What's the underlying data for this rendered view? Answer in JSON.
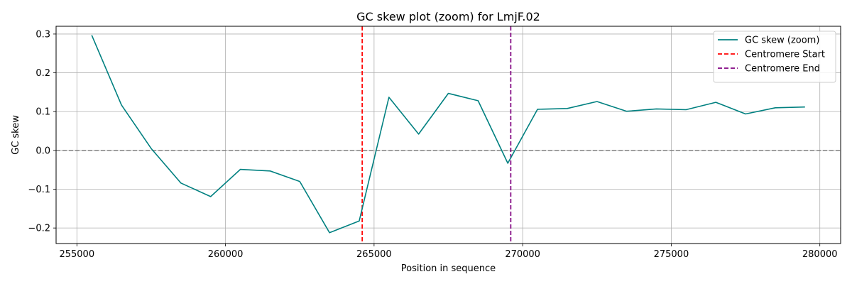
{
  "chart_data": {
    "type": "line",
    "title": "GC skew plot (zoom) for LmjF.02",
    "xlabel": "Position in sequence",
    "ylabel": "GC skew",
    "xlim": [
      254300,
      280700
    ],
    "ylim": [
      -0.24,
      0.32
    ],
    "xticks": [
      255000,
      260000,
      265000,
      270000,
      275000,
      280000
    ],
    "yticks": [
      -0.2,
      -0.1,
      0.0,
      0.1,
      0.2,
      0.3
    ],
    "xtick_labels": [
      "255000",
      "260000",
      "265000",
      "270000",
      "275000",
      "280000"
    ],
    "ytick_labels": [
      "−0.2",
      "−0.1",
      "0.0",
      "0.1",
      "0.2",
      "0.3"
    ],
    "grid": true,
    "legend_position": "top-right",
    "series": [
      {
        "name": "GC skew (zoom)",
        "color": "#008080",
        "style": "solid",
        "x": [
          255500,
          256500,
          257500,
          258500,
          259500,
          260500,
          261500,
          262500,
          263500,
          264500,
          265500,
          266500,
          267500,
          268500,
          269500,
          270500,
          271500,
          272500,
          273500,
          274500,
          275500,
          276500,
          277500,
          278500,
          279500
        ],
        "y": [
          0.297,
          0.117,
          0.005,
          -0.084,
          -0.119,
          -0.049,
          -0.053,
          -0.08,
          -0.212,
          -0.182,
          0.137,
          0.042,
          0.147,
          0.128,
          -0.033,
          0.106,
          0.108,
          0.126,
          0.101,
          0.107,
          0.105,
          0.124,
          0.094,
          0.11,
          0.112
        ]
      }
    ],
    "vlines": [
      {
        "name": "Centromere Start",
        "x": 264600,
        "color": "#ff0000",
        "style": "dashed"
      },
      {
        "name": "Centromere End",
        "x": 269600,
        "color": "#800080",
        "style": "dashed"
      }
    ],
    "hlines": [
      {
        "y": 0.0,
        "color": "#808080",
        "style": "dashed"
      }
    ]
  }
}
